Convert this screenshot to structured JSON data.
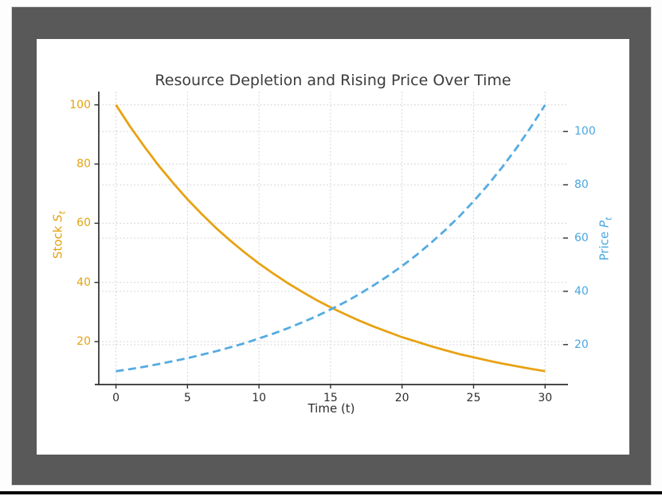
{
  "window": {
    "frame_color": "#595959",
    "canvas_color": "#ffffff",
    "bottom_bar_color": "#050505"
  },
  "chart_data": {
    "type": "line",
    "title": "Resource Depletion and Rising Price Over Time",
    "xlabel": "Time (t)",
    "grid": true,
    "legend": "none",
    "title_color": "#3c3c3c",
    "axis_spine_color": "#2e2e2e",
    "grid_color": "#d2d2d2",
    "x_tick_color": "#2e2e2e",
    "x_ticks": [
      0,
      5,
      10,
      15,
      20,
      25,
      30
    ],
    "xlim": [
      -1.2,
      31.6
    ],
    "x": [
      0,
      1,
      2,
      3,
      4,
      5,
      6,
      7,
      8,
      9,
      10,
      11,
      12,
      13,
      14,
      15,
      16,
      17,
      18,
      19,
      20,
      21,
      22,
      23,
      24,
      25,
      26,
      27,
      28,
      29,
      30
    ],
    "left_axis": {
      "label_prefix": "Stock ",
      "label_var": "S",
      "label_sub": "t",
      "color": "#e2a30f",
      "ticks": [
        20,
        40,
        60,
        80,
        100
      ],
      "lim": [
        5.5,
        104.5
      ]
    },
    "right_axis": {
      "label_prefix": "Price ",
      "label_var": "P",
      "label_sub": "t",
      "color": "#4aa7e0",
      "ticks": [
        20,
        40,
        60,
        80,
        100
      ],
      "lim": [
        5.0,
        115.0
      ]
    },
    "series": [
      {
        "key": "stock",
        "name": "Stock S_t",
        "axis": "left",
        "line_style": "solid",
        "color": "#e8a214",
        "values": [
          100.0,
          92.6,
          85.8,
          79.4,
          73.6,
          68.1,
          63.1,
          58.4,
          54.1,
          50.1,
          46.4,
          43.0,
          39.8,
          36.9,
          34.1,
          31.6,
          29.3,
          27.1,
          25.1,
          23.3,
          21.5,
          20.0,
          18.5,
          17.1,
          15.8,
          14.7,
          13.6,
          12.6,
          11.7,
          10.8,
          10.0
        ]
      },
      {
        "key": "price",
        "name": "Price P_t",
        "axis": "right",
        "line_style": "dashed",
        "color": "#55abe2",
        "values": [
          10.0,
          10.8,
          11.7,
          12.7,
          13.8,
          14.9,
          16.2,
          17.5,
          19.0,
          20.5,
          22.3,
          24.1,
          26.1,
          28.3,
          30.6,
          33.2,
          35.9,
          38.9,
          42.2,
          45.7,
          49.5,
          53.6,
          58.1,
          62.9,
          68.1,
          73.8,
          79.9,
          86.6,
          93.8,
          101.6,
          110.0
        ]
      }
    ]
  }
}
